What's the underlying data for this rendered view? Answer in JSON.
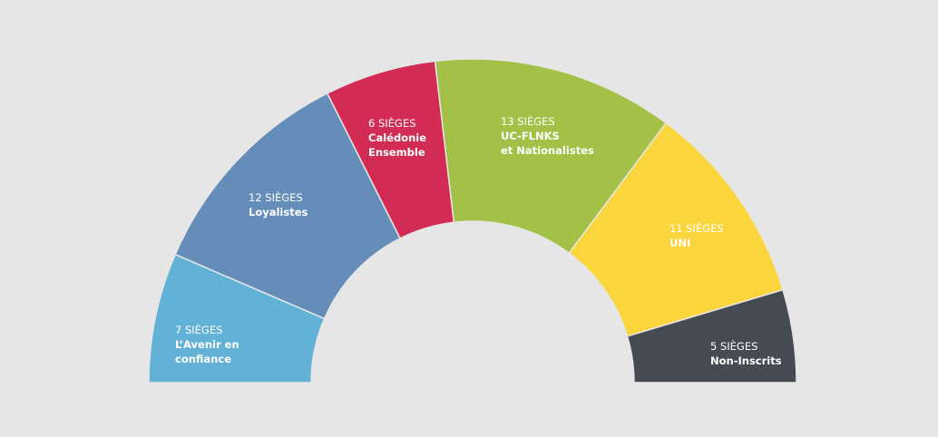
{
  "chart_data": {
    "type": "pie",
    "variant": "half-donut",
    "title": "",
    "total": 54,
    "series": [
      {
        "seats_label": "7 SIÈGES",
        "party_lines": [
          "L’Avenir en",
          "confiance"
        ],
        "value": 7,
        "color": "#62b2d8"
      },
      {
        "seats_label": "12 SIÈGES",
        "party_lines": [
          "Loyalistes"
        ],
        "value": 12,
        "color": "#648db9"
      },
      {
        "seats_label": "6 SIÈGES",
        "party_lines": [
          "Calédonie",
          "Ensemble"
        ],
        "value": 6,
        "color": "#d22c55"
      },
      {
        "seats_label": "13 SIÈGES",
        "party_lines": [
          "UC-FLNKS",
          "et Nationalistes"
        ],
        "value": 13,
        "color": "#a2c146"
      },
      {
        "seats_label": "11 SIÈGES",
        "party_lines": [
          "UNI"
        ],
        "value": 11,
        "color": "#fad53c"
      },
      {
        "seats_label": "5 SIÈGES",
        "party_lines": [
          "Non-Inscrits"
        ],
        "value": 5,
        "color": "#464a52"
      }
    ]
  }
}
